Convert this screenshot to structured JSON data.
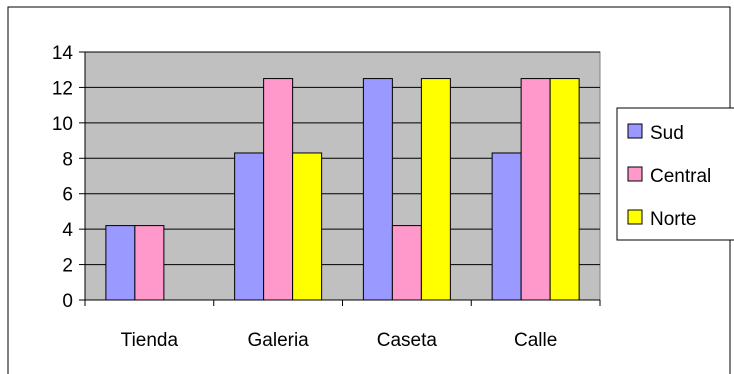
{
  "chart_data": {
    "type": "bar",
    "categories": [
      "Tienda",
      "Galeria",
      "Caseta",
      "Calle"
    ],
    "series": [
      {
        "name": "Sud",
        "values": [
          4.2,
          8.3,
          12.5,
          8.3
        ],
        "color": "#9999ff"
      },
      {
        "name": "Central",
        "values": [
          4.2,
          12.5,
          4.2,
          12.5
        ],
        "color": "#ff99cc"
      },
      {
        "name": "Norte",
        "values": [
          0,
          8.3,
          12.5,
          12.5
        ],
        "color": "#ffff00"
      }
    ],
    "ylim": [
      0,
      14
    ],
    "yticks": [
      "0",
      "2",
      "4",
      "6",
      "8",
      "10",
      "12",
      "14"
    ],
    "grid": true,
    "legend_position": "right",
    "plot_background": "#c0c0c0"
  }
}
